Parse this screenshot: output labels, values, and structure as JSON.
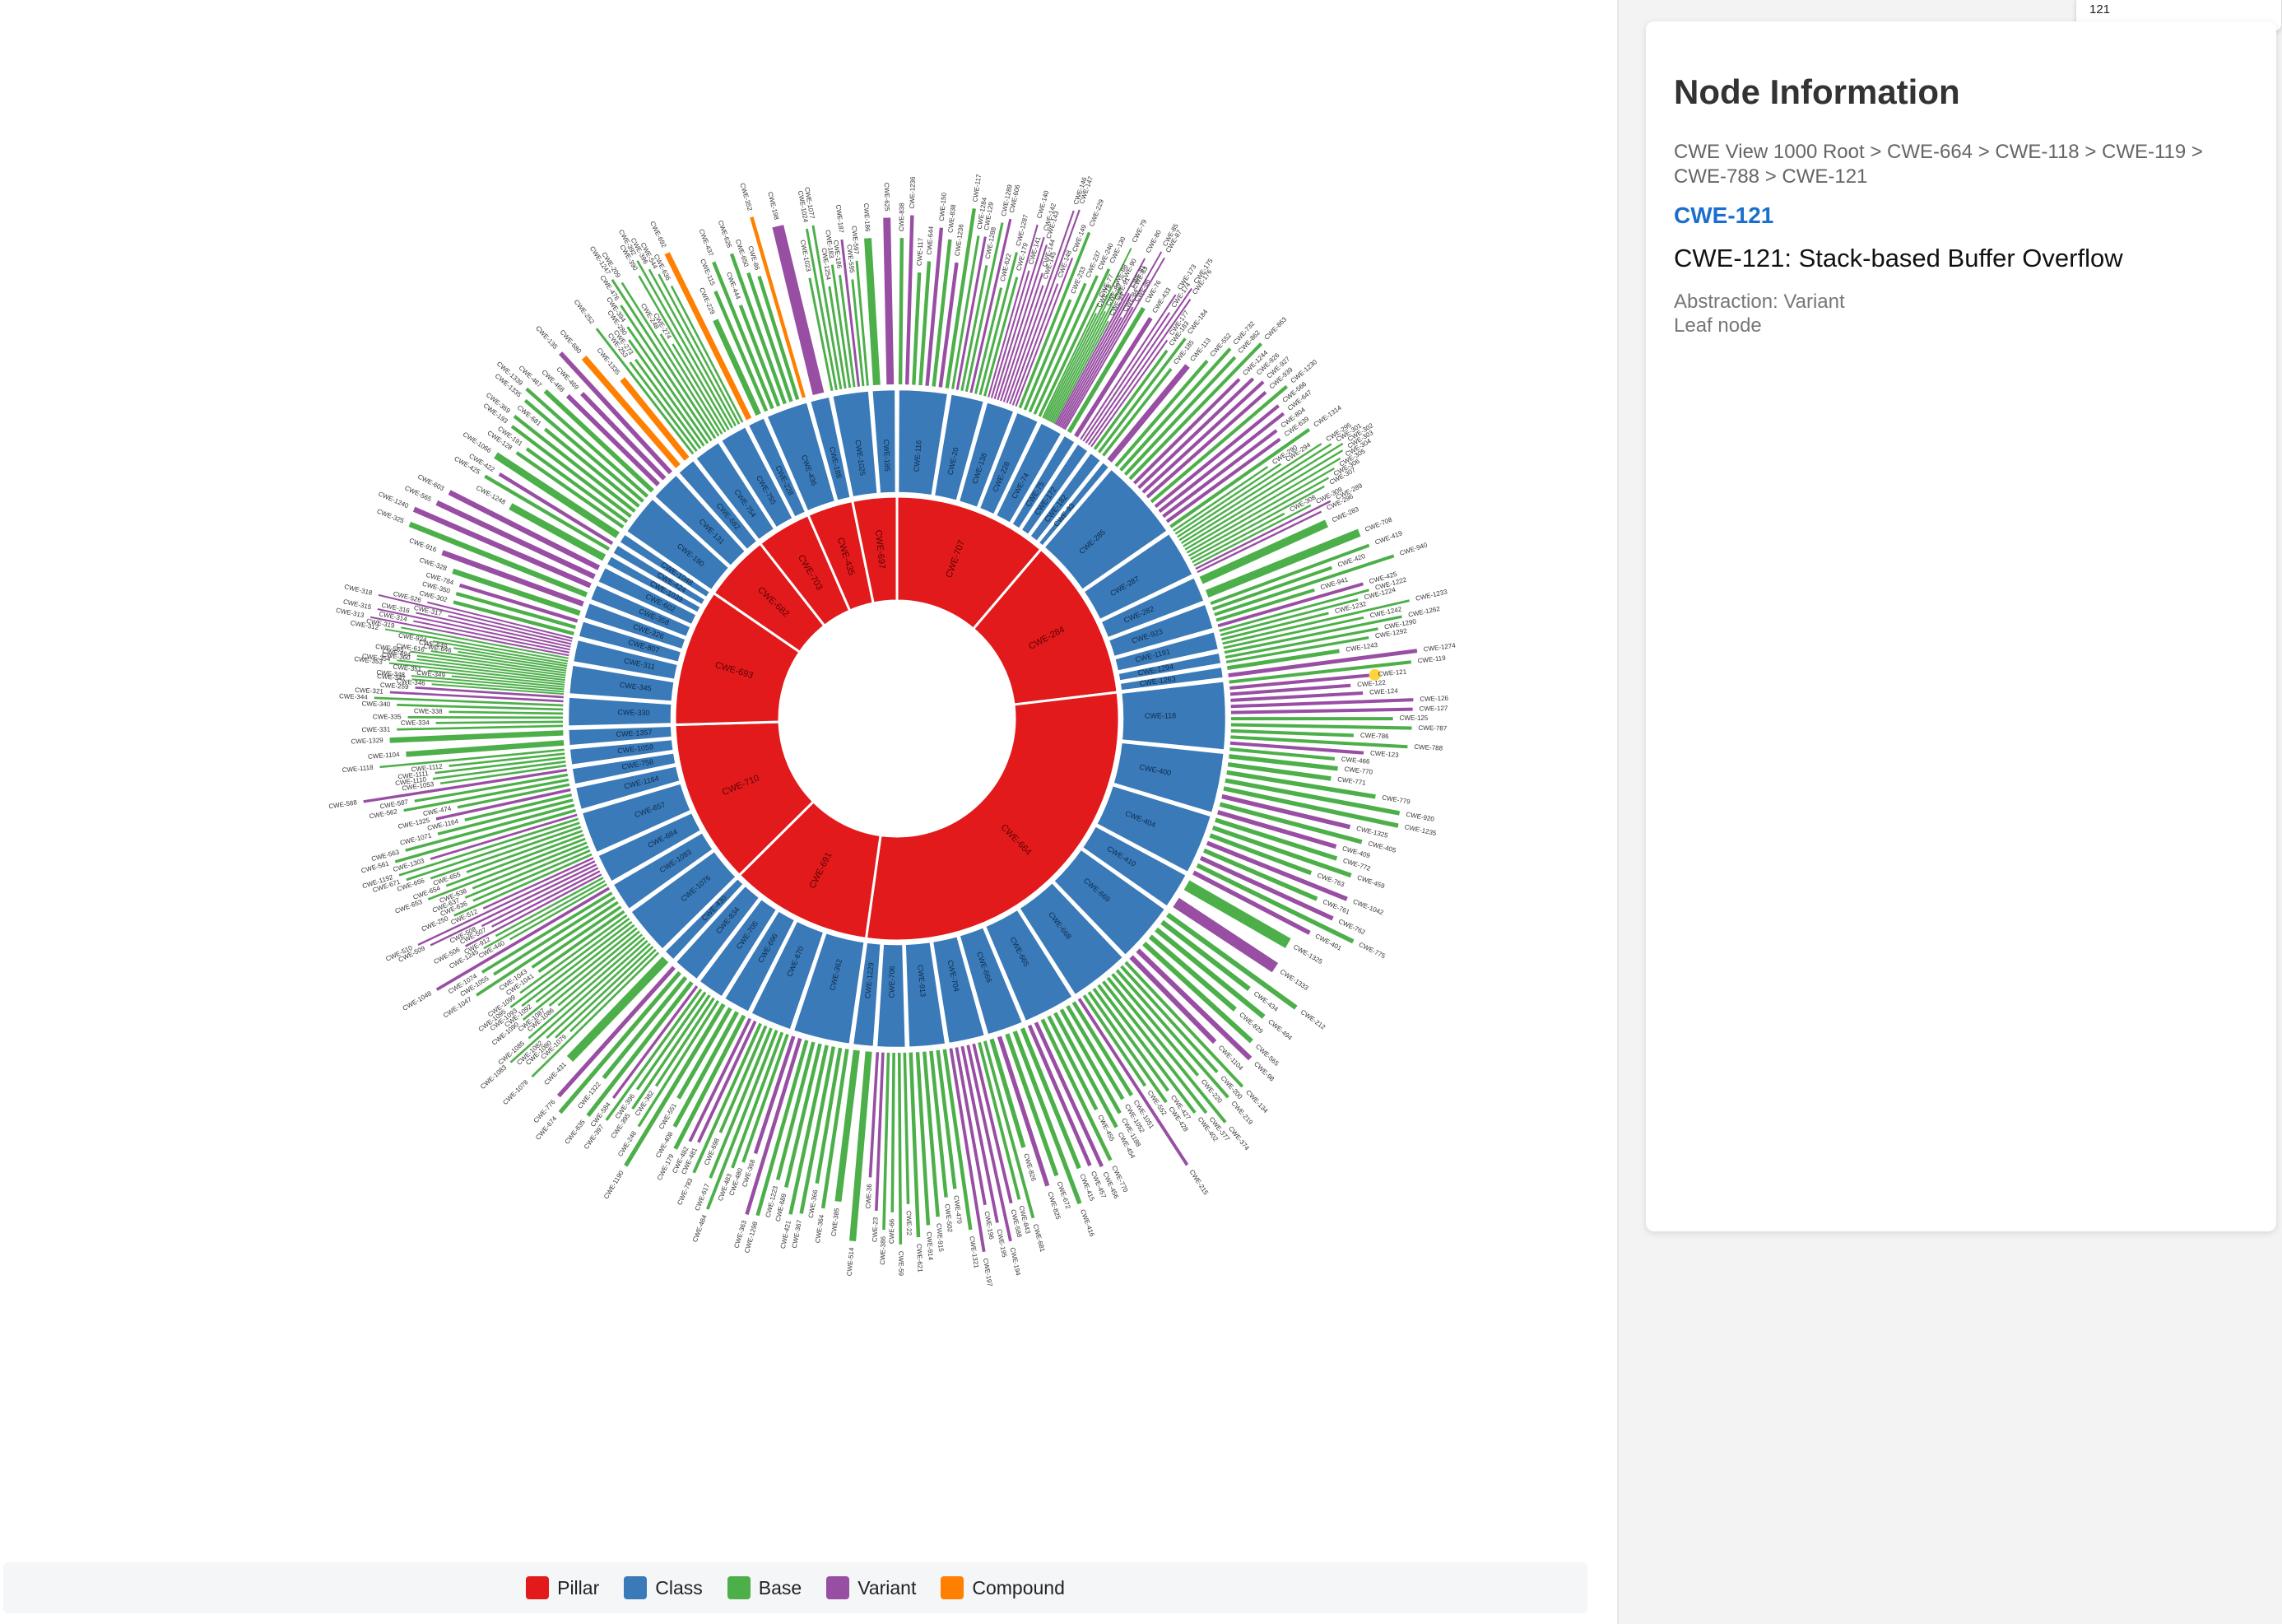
{
  "search": {
    "value": "121"
  },
  "info_panel": {
    "title": "Node Information",
    "breadcrumb": "CWE View 1000 Root > CWE-664 > CWE-118 > CWE-119 > CWE-788 > CWE-121",
    "selected_id": "CWE-121",
    "selected_name": "CWE-121: Stack-based Buffer Overflow",
    "abstraction": "Abstraction: Variant",
    "node_type": "Leaf node"
  },
  "legend": [
    {
      "label": "Pillar",
      "color": "#e31a1c"
    },
    {
      "label": "Class",
      "color": "#3a7ab8"
    },
    {
      "label": "Base",
      "color": "#4daf4a"
    },
    {
      "label": "Variant",
      "color": "#984ea3"
    },
    {
      "label": "Compound",
      "color": "#ff7f00"
    }
  ],
  "colors": {
    "pillar": "#e31a1c",
    "class": "#3a7ab8",
    "base": "#4daf4a",
    "variant": "#984ea3",
    "compound": "#ff7f00",
    "highlight": "#ffd23f"
  },
  "chart_data": {
    "type": "sunburst",
    "root": "CWE View 1000 Root",
    "selected": "CWE-121",
    "pillars": [
      {
        "id": "CWE-707",
        "share": 0.101,
        "children": [
          {
            "id": "CWE-116",
            "size": 10,
            "kids": [
              "b:CWE-838",
              "v:CWE-1236",
              "b:CWE-117",
              "b:CWE-644",
              "v:CWE-150",
              "b:CWE-838",
              "v:CWE-1236",
              "b:CWE-117"
            ]
          },
          {
            "id": "CWE-20",
            "size": 7,
            "kids": [
              "b:CWE-1284",
              "v:CWE-129",
              "b:CWE-1288",
              "b:CWE-1289",
              "v:CWE-606",
              "b:CWE-622",
              "b:CWE-1287",
              "b:CWE-179"
            ]
          },
          {
            "id": "CWE-138",
            "size": 6,
            "kids": [
              "v:CWE-140",
              "v:CWE-141",
              "v:CWE-142",
              "v:CWE-143",
              "v:CWE-144",
              "v:CWE-145",
              "v:CWE-146",
              "v:CWE-147",
              "v:CWE-148",
              "v:CWE-149"
            ]
          },
          {
            "id": "CWE-228",
            "size": 5,
            "kids": [
              "b:CWE-229",
              "b:CWE-233",
              "b:CWE-237",
              "b:CWE-240",
              "b:CWE-130"
            ]
          },
          {
            "id": "CWE-74",
            "size": 5,
            "kids": [
              "b:CWE-77",
              "b:CWE-78",
              "b:CWE-79",
              "b:CWE-88",
              "b:CWE-89",
              "b:CWE-90",
              "b:CWE-91",
              "b:CWE-94",
              "v:CWE-80",
              "v:CWE-81",
              "v:CWE-83",
              "v:CWE-84",
              "v:CWE-85",
              "v:CWE-86",
              "v:CWE-87"
            ]
          },
          {
            "id": "CWE-75",
            "size": 3,
            "kids": [
              "b:CWE-76",
              "v:CWE-433"
            ]
          },
          {
            "id": "CWE-172",
            "size": 3,
            "kids": [
              "v:CWE-173",
              "v:CWE-174",
              "v:CWE-175",
              "v:CWE-176",
              "v:CWE-177"
            ]
          },
          {
            "id": "CWE-182",
            "size": 3,
            "kids": [
              "b:CWE-183",
              "b:CWE-184",
              "b:CWE-185"
            ]
          },
          {
            "id": "CWE-93",
            "size": 2,
            "kids": [
              "v:CWE-113"
            ]
          }
        ]
      },
      {
        "id": "CWE-284",
        "share": 0.107,
        "children": [
          {
            "id": "CWE-285",
            "size": 12,
            "kids": [
              "b:CWE-552",
              "b:CWE-732",
              "b:CWE-862",
              "b:CWE-863",
              "v:CWE-1244",
              "v:CWE-926",
              "v:CWE-927",
              "v:CWE-939",
              "b:CWE-1230",
              "v:CWE-566",
              "v:CWE-647",
              "v:CWE-804",
              "v:CWE-639",
              "b:CWE-1314"
            ]
          },
          {
            "id": "CWE-287",
            "size": 7,
            "kids": [
              "b:CWE-290",
              "b:CWE-294",
              "b:CWE-295",
              "b:CWE-301",
              "b:CWE-302",
              "b:CWE-303",
              "b:CWE-304",
              "b:CWE-305",
              "b:CWE-306",
              "b:CWE-307",
              "b:CWE-308",
              "b:CWE-309",
              "v:CWE-289",
              "v:CWE-296"
            ]
          },
          {
            "id": "CWE-282",
            "size": 4,
            "kids": [
              "b:CWE-283",
              "b:CWE-708"
            ]
          },
          {
            "id": "CWE-923",
            "size": 4,
            "kids": [
              "b:CWE-419",
              "b:CWE-420",
              "b:CWE-940",
              "b:CWE-941",
              "v:CWE-425"
            ]
          },
          {
            "id": "CWE-1191",
            "size": 3,
            "kids": [
              "b:CWE-1222",
              "b:CWE-1224",
              "b:CWE-1232",
              "b:CWE-1233",
              "b:CWE-1242"
            ]
          },
          {
            "id": "CWE-1294",
            "size": 2,
            "kids": [
              "b:CWE-1262",
              "b:CWE-1290",
              "b:CWE-1292"
            ]
          },
          {
            "id": "CWE-1263",
            "size": 2,
            "kids": [
              "b:CWE-1243",
              "v:CWE-1274"
            ]
          }
        ]
      },
      {
        "id": "CWE-664",
        "share": 0.262,
        "children": [
          {
            "id": "CWE-118",
            "size": 9,
            "kids": [
              "b:CWE-119",
              "v:CWE-121",
              "v:CWE-122",
              "v:CWE-124",
              "v:CWE-126",
              "v:CWE-127",
              "b:CWE-125",
              "b:CWE-787",
              "b:CWE-786",
              "b:CWE-788",
              "v:CWE-123",
              "b:CWE-466"
            ]
          },
          {
            "id": "CWE-400",
            "size": 8,
            "kids": [
              "b:CWE-770",
              "b:CWE-771",
              "b:CWE-779",
              "b:CWE-920",
              "b:CWE-1235",
              "v:CWE-1325",
              "b:CWE-405",
              "v:CWE-409"
            ]
          },
          {
            "id": "CWE-404",
            "size": 8,
            "kids": [
              "b:CWE-772",
              "b:CWE-459",
              "b:CWE-763",
              "v:CWE-1042",
              "b:CWE-761",
              "v:CWE-762",
              "b:CWE-775",
              "v:CWE-401"
            ]
          },
          {
            "id": "CWE-410",
            "size": 5,
            "kids": [
              "b:CWE-1325",
              "v:CWE-1333"
            ]
          },
          {
            "id": "CWE-669",
            "size": 8,
            "kids": [
              "b:CWE-212",
              "b:CWE-434",
              "b:CWE-494",
              "b:CWE-829",
              "b:CWE-565",
              "v:CWE-98",
              "v:CWE-1104"
            ]
          },
          {
            "id": "CWE-668",
            "size": 8,
            "kids": [
              "b:CWE-134",
              "b:CWE-200",
              "b:CWE-219",
              "b:CWE-220",
              "b:CWE-374",
              "b:CWE-377",
              "b:CWE-402",
              "b:CWE-427",
              "b:CWE-428",
              "b:CWE-552",
              "v:CWE-215"
            ]
          },
          {
            "id": "CWE-665",
            "size": 7,
            "kids": [
              "b:CWE-1051",
              "b:CWE-1052",
              "b:CWE-1188",
              "b:CWE-454",
              "b:CWE-455",
              "b:CWE-770",
              "v:CWE-456",
              "v:CWE-457"
            ]
          },
          {
            "id": "CWE-666",
            "size": 5,
            "kids": [
              "b:CWE-415",
              "b:CWE-416",
              "b:CWE-672",
              "v:CWE-825",
              "b:CWE-826"
            ]
          },
          {
            "id": "CWE-704",
            "size": 5,
            "kids": [
              "b:CWE-681",
              "b:CWE-843",
              "v:CWE-588",
              "v:CWE-194",
              "v:CWE-195",
              "v:CWE-196",
              "v:CWE-197"
            ]
          },
          {
            "id": "CWE-913",
            "size": 5,
            "kids": [
              "b:CWE-1321",
              "b:CWE-470",
              "b:CWE-502",
              "b:CWE-915",
              "b:CWE-914",
              "b:CWE-621"
            ]
          },
          {
            "id": "CWE-706",
            "size": 4,
            "kids": [
              "b:CWE-22",
              "b:CWE-59",
              "b:CWE-66",
              "b:CWE-386",
              "v:CWE-23",
              "v:CWE-36"
            ]
          },
          {
            "id": "CWE-1229",
            "size": 3,
            "kids": [
              "b:CWE-514",
              "b:CWE-385"
            ]
          }
        ]
      },
      {
        "id": "CWE-691",
        "share": 0.093,
        "children": [
          {
            "id": "CWE-362",
            "size": 8,
            "kids": [
              "b:CWE-364",
              "b:CWE-366",
              "b:CWE-367",
              "b:CWE-421",
              "b:CWE-689",
              "b:CWE-1223",
              "b:CWE-1298",
              "v:CWE-363",
              "v:CWE-368"
            ]
          },
          {
            "id": "CWE-670",
            "size": 6,
            "kids": [
              "b:CWE-480",
              "b:CWE-483",
              "b:CWE-484",
              "b:CWE-617",
              "b:CWE-698",
              "b:CWE-783",
              "v:CWE-481",
              "v:CWE-482"
            ]
          },
          {
            "id": "CWE-696",
            "size": 4,
            "kids": [
              "b:CWE-179",
              "b:CWE-408",
              "b:CWE-551",
              "b:CWE-1190"
            ]
          },
          {
            "id": "CWE-705",
            "size": 4,
            "kids": [
              "b:CWE-248",
              "b:CWE-382",
              "b:CWE-395",
              "b:CWE-396",
              "b:CWE-397",
              "v:CWE-584"
            ]
          },
          {
            "id": "CWE-834",
            "size": 4,
            "kids": [
              "b:CWE-835",
              "b:CWE-1322",
              "b:CWE-674",
              "v:CWE-776"
            ]
          },
          {
            "id": "CWE-430",
            "size": 2,
            "kids": [
              "b:CWE-431"
            ]
          }
        ]
      },
      {
        "id": "CWE-710",
        "share": 0.108,
        "children": [
          {
            "id": "CWE-1076",
            "size": 8,
            "kids": [
              "b:CWE-1078",
              "b:CWE-1079",
              "b:CWE-1080",
              "b:CWE-1082",
              "b:CWE-1083",
              "b:CWE-1085",
              "b:CWE-1086",
              "b:CWE-1087",
              "b:CWE-1090",
              "b:CWE-1092",
              "b:CWE-1093",
              "b:CWE-1095",
              "b:CWE-1099"
            ]
          },
          {
            "id": "CWE-1093",
            "size": 5,
            "kids": [
              "b:CWE-1041",
              "b:CWE-1043",
              "b:CWE-1047",
              "b:CWE-1055",
              "b:CWE-1074",
              "v:CWE-1048"
            ]
          },
          {
            "id": "CWE-684",
            "size": 5,
            "kids": [
              "b:CWE-440",
              "b:CWE-1245",
              "b:CWE-912",
              "v:CWE-506",
              "v:CWE-507",
              "v:CWE-508",
              "v:CWE-509",
              "v:CWE-510",
              "v:CWE-512"
            ]
          },
          {
            "id": "CWE-657",
            "size": 7,
            "kids": [
              "b:CWE-250",
              "b:CWE-636",
              "b:CWE-637",
              "b:CWE-638",
              "b:CWE-653",
              "b:CWE-654",
              "b:CWE-655",
              "b:CWE-656",
              "b:CWE-671",
              "b:CWE-1192",
              "v:CWE-1303"
            ]
          },
          {
            "id": "CWE-1164",
            "size": 4,
            "kids": [
              "b:CWE-561",
              "b:CWE-563",
              "b:CWE-1071",
              "b:CWE-1164",
              "v:CWE-1325"
            ]
          },
          {
            "id": "CWE-758",
            "size": 3,
            "kids": [
              "b:CWE-474",
              "b:CWE-562",
              "b:CWE-587",
              "v:CWE-588"
            ]
          },
          {
            "id": "CWE-1059",
            "size": 3,
            "kids": [
              "b:CWE-1053",
              "b:CWE-1110",
              "b:CWE-1111",
              "b:CWE-1112",
              "b:CWE-1118"
            ]
          },
          {
            "id": "CWE-1357",
            "size": 3,
            "kids": [
              "b:CWE-1104",
              "b:CWE-1329"
            ]
          }
        ]
      },
      {
        "id": "CWE-693",
        "share": 0.09,
        "children": [
          {
            "id": "CWE-330",
            "size": 5,
            "kids": [
              "b:CWE-331",
              "b:CWE-334",
              "b:CWE-335",
              "b:CWE-338",
              "b:CWE-340",
              "b:CWE-344",
              "v:CWE-321",
              "v:CWE-259"
            ]
          },
          {
            "id": "CWE-345",
            "size": 5,
            "kids": [
              "b:CWE-346",
              "b:CWE-347",
              "b:CWE-348",
              "b:CWE-349",
              "b:CWE-351",
              "b:CWE-353",
              "b:CWE-354",
              "b:CWE-360",
              "b:CWE-494",
              "b:CWE-565",
              "b:CWE-616",
              "b:CWE-646",
              "b:CWE-649",
              "b:CWE-924"
            ]
          },
          {
            "id": "CWE-311",
            "size": 4,
            "kids": [
              "b:CWE-312",
              "b:CWE-319",
              "v:CWE-313",
              "v:CWE-314",
              "v:CWE-315",
              "v:CWE-316",
              "v:CWE-317",
              "v:CWE-318",
              "v:CWE-526"
            ]
          },
          {
            "id": "CWE-807",
            "size": 3,
            "kids": [
              "b:CWE-302",
              "b:CWE-350",
              "v:CWE-784"
            ]
          },
          {
            "id": "CWE-326",
            "size": 3,
            "kids": [
              "b:CWE-328",
              "v:CWE-916"
            ]
          },
          {
            "id": "CWE-358",
            "size": 3,
            "kids": [
              "b:CWE-325",
              "v:CWE-1240"
            ]
          },
          {
            "id": "CWE-602",
            "size": 3,
            "kids": [
              "v:CWE-565",
              "v:CWE-603"
            ]
          },
          {
            "id": "CWE-1039",
            "size": 2,
            "kids": [
              "b:CWE-1248"
            ]
          },
          {
            "id": "CWE-424",
            "size": 2,
            "kids": [
              "b:CWE-425",
              "v:CWE-422"
            ]
          },
          {
            "id": "CWE-1048",
            "size": 2,
            "kids": [
              "b:CWE-1066"
            ]
          }
        ]
      },
      {
        "id": "CWE-682",
        "share": 0.044,
        "children": [
          {
            "id": "CWE-190",
            "size": 4,
            "kids": [
              "b:CWE-128",
              "b:CWE-191",
              "b:CWE-193",
              "b:CWE-369",
              "b:CWE-681",
              "b:CWE-1335",
              "b:CWE-1339"
            ]
          },
          {
            "id": "CWE-131",
            "size": 3,
            "kids": [
              "b:CWE-467",
              "v:CWE-468",
              "v:CWE-469",
              "v:CWE-135"
            ]
          },
          {
            "id": "CWE-682",
            "size": 2,
            "kids": [
              "c:CWE-680",
              "c:CWE-1335"
            ]
          }
        ]
      },
      {
        "id": "CWE-703",
        "share": 0.036,
        "children": [
          {
            "id": "CWE-754",
            "size": 3,
            "kids": [
              "b:CWE-252",
              "b:CWE-253",
              "b:CWE-273",
              "b:CWE-280",
              "b:CWE-394",
              "b:CWE-476",
              "b:CWE-1247"
            ]
          },
          {
            "id": "CWE-755",
            "size": 3,
            "kids": [
              "b:CWE-209",
              "b:CWE-248",
              "b:CWE-274",
              "b:CWE-390",
              "b:CWE-392",
              "b:CWE-396",
              "b:CWE-544",
              "b:CWE-636"
            ]
          },
          {
            "id": "CWE-228",
            "size": 2,
            "kids": [
              "c:CWE-692",
              "b:CWE-229"
            ]
          }
        ]
      },
      {
        "id": "CWE-435",
        "share": 0.03,
        "children": [
          {
            "id": "CWE-436",
            "size": 4,
            "kids": [
              "b:CWE-115",
              "b:CWE-437",
              "b:CWE-444",
              "b:CWE-626",
              "b:CWE-650",
              "b:CWE-86",
              "c:CWE-352"
            ]
          },
          {
            "id": "CWE-188",
            "size": 2,
            "kids": [
              "v:CWE-198"
            ]
          }
        ]
      },
      {
        "id": "CWE-697",
        "share": 0.029,
        "children": [
          {
            "id": "CWE-1025",
            "size": 3,
            "kids": [
              "b:CWE-1023",
              "b:CWE-1024",
              "b:CWE-1077",
              "b:CWE-1254",
              "b:CWE-183",
              "b:CWE-186",
              "v:CWE-187",
              "b:CWE-595",
              "b:CWE-597"
            ]
          },
          {
            "id": "CWE-185",
            "size": 2,
            "kids": [
              "b:CWE-186",
              "v:CWE-625"
            ]
          }
        ]
      }
    ]
  }
}
